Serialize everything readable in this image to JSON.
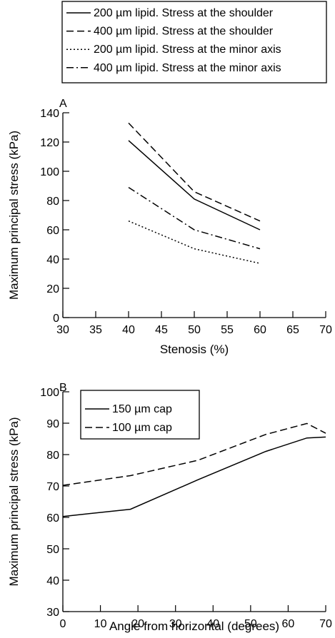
{
  "chart_data": [
    {
      "panel_label": "A",
      "type": "line",
      "xlabel": "Stenosis (%)",
      "ylabel": "Maximum principal stress (kPa)",
      "xlim": [
        30,
        70
      ],
      "ylim": [
        0,
        140
      ],
      "xticks": [
        30,
        35,
        40,
        45,
        50,
        55,
        60,
        65,
        70
      ],
      "yticks": [
        0,
        20,
        40,
        60,
        80,
        100,
        120,
        140
      ],
      "legend_position": "top, above panel",
      "grid": false,
      "x": [
        40,
        50,
        60
      ],
      "series": [
        {
          "name": "200 µm lipid. Stress at the shoulder",
          "dash": "solid",
          "values": [
            121,
            81,
            60
          ]
        },
        {
          "name": "400 µm lipid. Stress at the shoulder",
          "dash": "dashed",
          "values": [
            133,
            86,
            66
          ]
        },
        {
          "name": "200 µm lipid. Stress at the minor axis",
          "dash": "dotted",
          "values": [
            66,
            47,
            37
          ]
        },
        {
          "name": "400 µm lipid. Stress at the minor axis",
          "dash": "dashdot",
          "values": [
            89,
            60,
            47
          ]
        }
      ]
    },
    {
      "panel_label": "B",
      "type": "line",
      "xlabel": "Angle from horizontal (degrees)",
      "ylabel": "Maximum principal stress (kPa)",
      "xlim": [
        0,
        70
      ],
      "ylim": [
        30,
        100
      ],
      "xticks": [
        0,
        10,
        20,
        30,
        40,
        50,
        60,
        70
      ],
      "yticks": [
        30,
        40,
        50,
        60,
        70,
        80,
        90,
        100
      ],
      "legend_position": "top-left",
      "grid": false,
      "x": [
        0,
        18,
        36,
        54,
        65,
        70
      ],
      "series": [
        {
          "name": "150 µm cap",
          "dash": "solid",
          "values": [
            60.3,
            62.6,
            72,
            81,
            85.3,
            85.6
          ]
        },
        {
          "name": "100 µm cap",
          "dash": "dashed",
          "values": [
            70.2,
            73.3,
            78.2,
            86.4,
            89.9,
            86.8
          ]
        }
      ]
    }
  ]
}
